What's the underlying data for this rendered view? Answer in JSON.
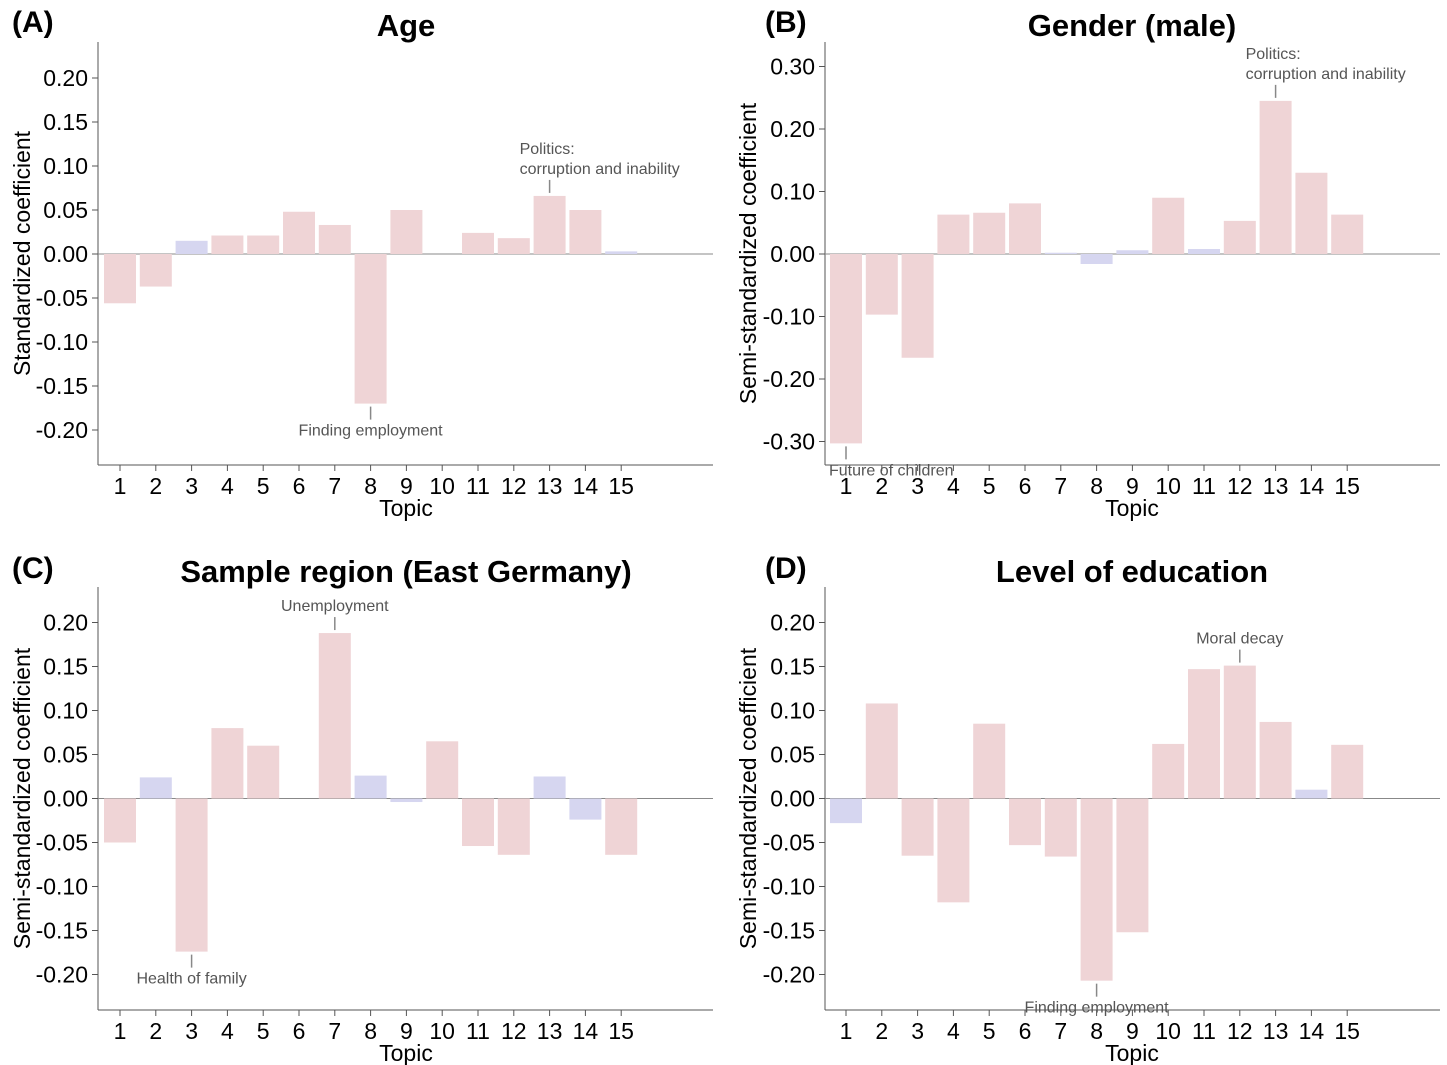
{
  "colors": {
    "positive": "#efd4d6",
    "negative": "#d6d6f0",
    "axis": "#555555",
    "annotation": "#555555"
  },
  "chart_data": [
    {
      "type": "bar",
      "panel": "(A)",
      "title": "Age",
      "xlabel": "Topic",
      "ylabel": "Standardized coefficient",
      "categories": [
        "1",
        "2",
        "3",
        "4",
        "5",
        "6",
        "7",
        "8",
        "9",
        "10",
        "11",
        "12",
        "13",
        "14",
        "15"
      ],
      "values": [
        -0.056,
        -0.037,
        0.015,
        0.021,
        0.021,
        0.048,
        0.033,
        -0.17,
        0.05,
        0.0,
        0.024,
        0.018,
        0.066,
        0.05,
        0.003
      ],
      "fill_categories": [
        "positive",
        "positive",
        "negative",
        "positive",
        "positive",
        "positive",
        "positive",
        "positive",
        "positive",
        "positive",
        "positive",
        "positive",
        "positive",
        "positive",
        "negative"
      ],
      "ylim": [
        -0.24,
        0.24
      ],
      "yticks": [
        "-0.20",
        "-0.15",
        "-0.10",
        "-0.05",
        "0.00",
        "0.05",
        "0.10",
        "0.15",
        "0.20"
      ],
      "ytick_values": [
        -0.2,
        -0.15,
        -0.1,
        -0.05,
        0.0,
        0.05,
        0.1,
        0.15,
        0.2
      ],
      "annotations": [
        {
          "topic": 13,
          "lines": [
            "Politics:",
            "corruption and inability"
          ],
          "position": "above"
        },
        {
          "topic": 8,
          "lines": [
            "Finding employment"
          ],
          "position": "below"
        }
      ]
    },
    {
      "type": "bar",
      "panel": "(B)",
      "title": "Gender (male)",
      "xlabel": "Topic",
      "ylabel": "Semi-standardized coefficient",
      "categories": [
        "1",
        "2",
        "3",
        "4",
        "5",
        "6",
        "7",
        "8",
        "9",
        "10",
        "11",
        "12",
        "13",
        "14",
        "15"
      ],
      "values": [
        -0.303,
        -0.097,
        -0.166,
        0.063,
        0.066,
        0.081,
        0.002,
        -0.016,
        0.006,
        0.09,
        0.008,
        0.053,
        0.245,
        0.13,
        0.063
      ],
      "fill_categories": [
        "positive",
        "positive",
        "positive",
        "positive",
        "positive",
        "positive",
        "negative",
        "negative",
        "negative",
        "positive",
        "negative",
        "positive",
        "positive",
        "positive",
        "positive"
      ],
      "ylim": [
        -0.34,
        0.34
      ],
      "yticks": [
        "-0.30",
        "-0.20",
        "-0.10",
        "0.00",
        "0.10",
        "0.20",
        "0.30"
      ],
      "ytick_values": [
        -0.3,
        -0.2,
        -0.1,
        0.0,
        0.1,
        0.2,
        0.3
      ],
      "annotations": [
        {
          "topic": 13,
          "lines": [
            "Politics:",
            "corruption and inability"
          ],
          "position": "above"
        },
        {
          "topic": 1,
          "lines": [
            "Future of children"
          ],
          "position": "below"
        }
      ]
    },
    {
      "type": "bar",
      "panel": "(C)",
      "title": "Sample region (East Germany)",
      "xlabel": "Topic",
      "ylabel": "Semi-standardized coefficient",
      "categories": [
        "1",
        "2",
        "3",
        "4",
        "5",
        "6",
        "7",
        "8",
        "9",
        "10",
        "11",
        "12",
        "13",
        "14",
        "15"
      ],
      "values": [
        -0.05,
        0.024,
        -0.174,
        0.08,
        0.06,
        0.0,
        0.188,
        0.026,
        -0.004,
        0.065,
        -0.054,
        -0.064,
        0.025,
        -0.024,
        -0.064
      ],
      "fill_categories": [
        "positive",
        "negative",
        "positive",
        "positive",
        "positive",
        "positive",
        "positive",
        "negative",
        "negative",
        "positive",
        "positive",
        "positive",
        "negative",
        "negative",
        "positive"
      ],
      "ylim": [
        -0.24,
        0.24
      ],
      "yticks": [
        "-0.20",
        "-0.15",
        "-0.10",
        "-0.05",
        "0.00",
        "0.05",
        "0.10",
        "0.15",
        "0.20"
      ],
      "ytick_values": [
        -0.2,
        -0.15,
        -0.1,
        -0.05,
        0.0,
        0.05,
        0.1,
        0.15,
        0.2
      ],
      "annotations": [
        {
          "topic": 7,
          "lines": [
            "Unemployment"
          ],
          "position": "above"
        },
        {
          "topic": 3,
          "lines": [
            "Health of family"
          ],
          "position": "below"
        }
      ]
    },
    {
      "type": "bar",
      "panel": "(D)",
      "title": "Level of education",
      "xlabel": "Topic",
      "ylabel": "Semi-standardized coefficient",
      "categories": [
        "1",
        "2",
        "3",
        "4",
        "5",
        "6",
        "7",
        "8",
        "9",
        "10",
        "11",
        "12",
        "13",
        "14",
        "15"
      ],
      "values": [
        -0.028,
        0.108,
        -0.065,
        -0.118,
        0.085,
        -0.053,
        -0.066,
        -0.207,
        -0.152,
        0.062,
        0.147,
        0.151,
        0.087,
        0.01,
        0.061
      ],
      "fill_categories": [
        "negative",
        "positive",
        "positive",
        "positive",
        "positive",
        "positive",
        "positive",
        "positive",
        "positive",
        "positive",
        "positive",
        "positive",
        "positive",
        "negative",
        "positive"
      ],
      "ylim": [
        -0.24,
        0.24
      ],
      "yticks": [
        "-0.20",
        "-0.15",
        "-0.10",
        "-0.05",
        "0.00",
        "0.05",
        "0.10",
        "0.15",
        "0.20"
      ],
      "ytick_values": [
        -0.2,
        -0.15,
        -0.1,
        -0.05,
        0.0,
        0.05,
        0.1,
        0.15,
        0.2
      ],
      "annotations": [
        {
          "topic": 12,
          "lines": [
            "Moral decay"
          ],
          "position": "above"
        },
        {
          "topic": 8,
          "lines": [
            "Finding employment"
          ],
          "position": "below"
        }
      ]
    }
  ]
}
